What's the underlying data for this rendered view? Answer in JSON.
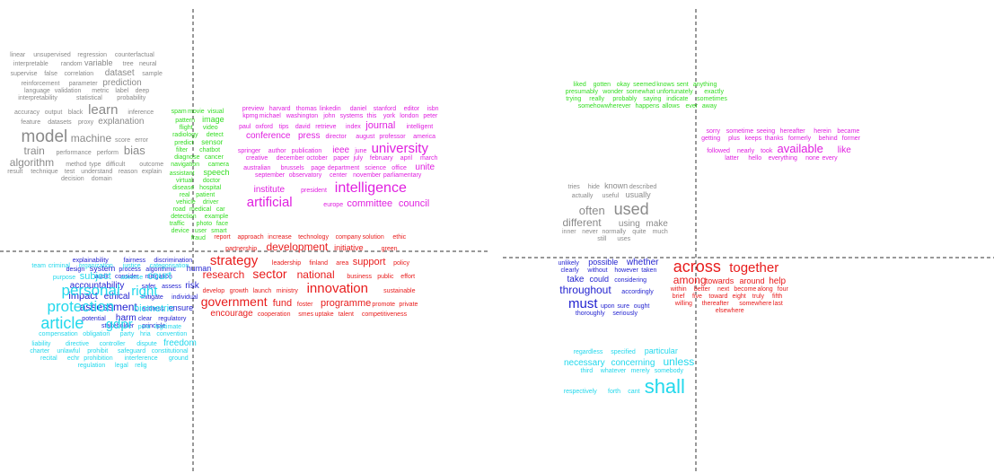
{
  "panels": [
    {
      "clusters": [
        {
          "color": "#8a8a8a",
          "words": [
            "linear",
            "unsupervised",
            "regression",
            "counterfactual",
            "interpretable",
            "random",
            "variable",
            "tree",
            "neural",
            "supervise",
            "false",
            "correlation",
            "dataset",
            "sample",
            "reinforcement",
            "parameter",
            "prediction",
            "language",
            "validation",
            "metric",
            "label",
            "deep",
            "interpretability",
            "statistical",
            "probability",
            "accuracy",
            "output",
            "black",
            "learn",
            "inference",
            "feature",
            "datasets",
            "proxy",
            "explanation",
            "model",
            "machine",
            "score",
            "error",
            "train",
            "performance",
            "perform",
            "bias",
            "algorithm",
            "method",
            "type",
            "difficult",
            "outcome",
            "result",
            "technique",
            "test",
            "understand",
            "reason",
            "explain",
            "decision",
            "domain"
          ]
        },
        {
          "color": "#33dd22",
          "words": [
            "spam",
            "movie",
            "visual",
            "pattern",
            "image",
            "flight",
            "video",
            "radiology",
            "detect",
            "predict",
            "sensor",
            "filter",
            "chatbot",
            "diagnose",
            "cancer",
            "navigation",
            "camera",
            "assistant",
            "speech",
            "virtual",
            "doctor",
            "disease",
            "hospital",
            "real",
            "patient",
            "vehicle",
            "driver",
            "road",
            "medical",
            "car",
            "detection",
            "example",
            "traffic",
            "photo",
            "face",
            "device",
            "user",
            "smart",
            "fraud"
          ]
        },
        {
          "color": "#e020e0",
          "words": [
            "preview",
            "harvard",
            "thomas",
            "linkedin",
            "daniel",
            "stanford",
            "editor",
            "isbn",
            "kpmg",
            "michael",
            "washington",
            "john",
            "systems",
            "this",
            "york",
            "london",
            "peter",
            "paul",
            "oxford",
            "tips",
            "david",
            "retrieve",
            "index",
            "journal",
            "intelligent",
            "conference",
            "press",
            "director",
            "august",
            "professor",
            "america",
            "springer",
            "author",
            "publication",
            "ieee",
            "june",
            "university",
            "creative",
            "december",
            "october",
            "paper",
            "july",
            "february",
            "april",
            "march",
            "australian",
            "brussels",
            "page",
            "department",
            "science",
            "office",
            "unite",
            "september",
            "observatory",
            "center",
            "november",
            "parliamentary",
            "institute",
            "president",
            "intelligence",
            "artificial",
            "europe",
            "committee",
            "council"
          ]
        },
        {
          "color": "#e81c1c",
          "words": [
            "report",
            "approach",
            "increase",
            "technology",
            "company",
            "solution",
            "ethic",
            "partnership",
            "development",
            "initiative",
            "green",
            "strategy",
            "leadership",
            "finland",
            "area",
            "support",
            "policy",
            "research",
            "sector",
            "national",
            "business",
            "public",
            "effort",
            "develop",
            "growth",
            "launch",
            "ministry",
            "innovation",
            "sustainable",
            "government",
            "fund",
            "foster",
            "programme",
            "promote",
            "private",
            "encourage",
            "cooperation",
            "smes",
            "uptake",
            "talent",
            "competitiveness"
          ]
        },
        {
          "color": "#2424d0",
          "words": [
            "explainability",
            "fairness",
            "discrimination",
            "design",
            "system",
            "process",
            "algorithmic",
            "human",
            "audit",
            "consider",
            "mitigation",
            "accountability",
            "safer",
            "assess",
            "risk",
            "impact",
            "ethical",
            "mitigate",
            "individual",
            "assessment",
            "address",
            "ensure",
            "potential",
            "harm",
            "clear",
            "regulatory",
            "stakeholder",
            "principle"
          ]
        },
        {
          "color": "#22d8ec",
          "words": [
            "team",
            "criminal",
            "organization",
            "justice",
            "categorisation",
            "purpose",
            "subject",
            "adverse",
            "court",
            "personal",
            "right",
            "protection",
            "biometric",
            "article",
            "gdpr",
            "pcra",
            "legitimate",
            "compensation",
            "obligation",
            "party",
            "hria",
            "convention",
            "liability",
            "directive",
            "controller",
            "dispute",
            "freedom",
            "charter",
            "unlawful",
            "prohibit",
            "safeguard",
            "constitutional",
            "recital",
            "echr",
            "prohibition",
            "interference",
            "ground",
            "regulation",
            "legal",
            "relig"
          ]
        }
      ]
    },
    {
      "clusters": [
        {
          "color": "#33dd22",
          "words": [
            "liked",
            "gotten",
            "okay",
            "seemed",
            "knows",
            "sent",
            "anything",
            "presumably",
            "wonder",
            "somewhat",
            "unfortunately",
            "exactly",
            "trying",
            "really",
            "probably",
            "saying",
            "indicate",
            "sometimes",
            "somehow",
            "wherever",
            "happens",
            "allows",
            "ever",
            "away"
          ]
        },
        {
          "color": "#8a8a8a",
          "words": [
            "tries",
            "hide",
            "known",
            "described",
            "actually",
            "useful",
            "usually",
            "often",
            "used",
            "different",
            "using",
            "make",
            "inner",
            "never",
            "normally",
            "quite",
            "much",
            "still",
            "uses"
          ]
        },
        {
          "color": "#e020e0",
          "words": [
            "sorry",
            "sometime",
            "seeing",
            "hereafter",
            "herein",
            "became",
            "getting",
            "plus",
            "keeps",
            "thanks",
            "formerly",
            "behind",
            "former",
            "followed",
            "nearly",
            "took",
            "available",
            "like",
            "latter",
            "hello",
            "everything",
            "none",
            "every"
          ]
        },
        {
          "color": "#e81c1c",
          "words": [
            "across",
            "together",
            "among",
            "towards",
            "around",
            "help",
            "within",
            "better",
            "next",
            "become",
            "along",
            "four",
            "brief",
            "five",
            "toward",
            "eight",
            "truly",
            "fifth",
            "willing",
            "thereafter",
            "somewhere",
            "last",
            "elsewhere"
          ]
        },
        {
          "color": "#2424d0",
          "words": [
            "unlikely",
            "possible",
            "whether",
            "clearly",
            "without",
            "however",
            "taken",
            "take",
            "could",
            "considering",
            "throughout",
            "accordingly",
            "must",
            "upon",
            "sure",
            "ought",
            "thoroughly",
            "seriously"
          ]
        },
        {
          "color": "#22d8ec",
          "words": [
            "regardless",
            "specified",
            "particular",
            "necessary",
            "concerning",
            "unless",
            "third",
            "whatever",
            "merely",
            "somebody",
            "respectively",
            "forth",
            "cant",
            "shall"
          ]
        }
      ]
    }
  ]
}
